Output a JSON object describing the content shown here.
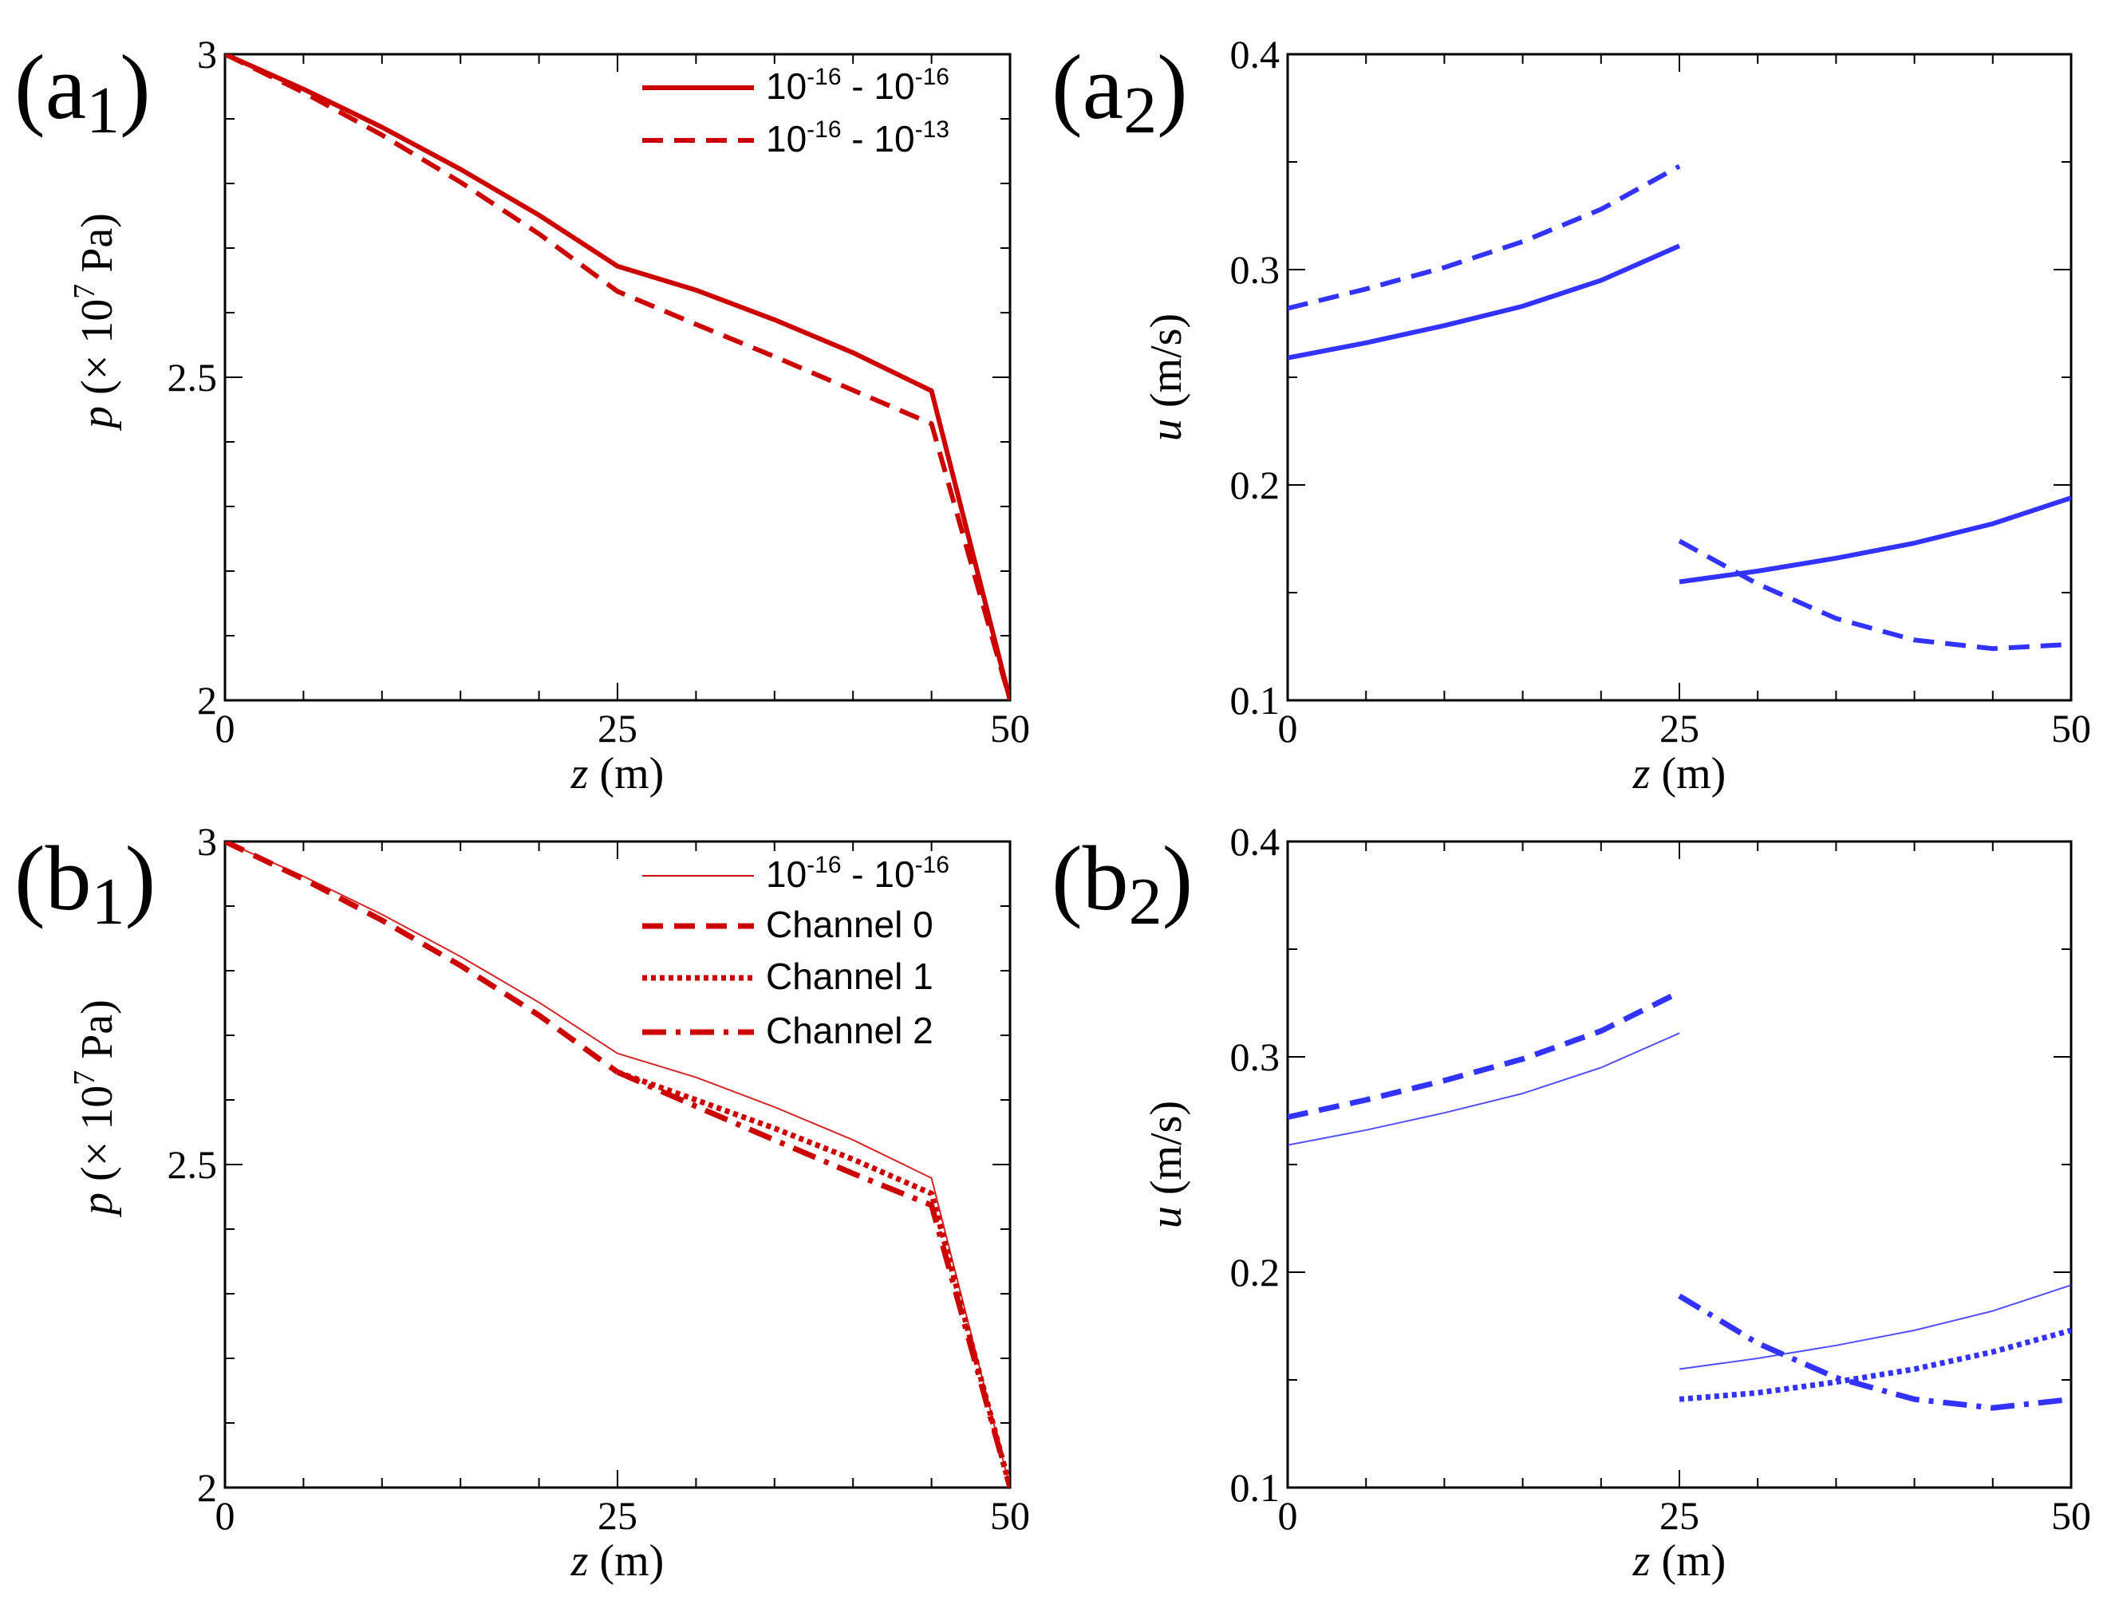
{
  "chart_data": [
    {
      "panel": "a1",
      "type": "line",
      "label_main": "(a",
      "label_sub": "1",
      "label_close": ")",
      "xlabel_var": "z",
      "xlabel_unit": " (m)",
      "ylabel_var": "p",
      "ylabel_unit_pre": " (× 10",
      "ylabel_exp": "7",
      "ylabel_unit_post": " Pa)",
      "xlim": [
        0,
        50
      ],
      "ylim": [
        2,
        3
      ],
      "xticks": [
        0,
        25,
        50
      ],
      "yticks": [
        2,
        2.5,
        3
      ],
      "xtick_labels": [
        "0",
        "25",
        "50"
      ],
      "ytick_labels": [
        "2",
        "2.5",
        "3"
      ],
      "color": "#cc0000",
      "legend": [
        {
          "a": "10",
          "ae": "-16",
          "mid": " - ",
          "b": "10",
          "be": "-16",
          "style": "solid",
          "width": 6
        },
        {
          "a": "10",
          "ae": "-16",
          "mid": " - ",
          "b": "10",
          "be": "-13",
          "style": "dashed",
          "width": 6
        }
      ],
      "series": [
        {
          "name": "10^-16 - 10^-16",
          "style": "solid",
          "width": 6,
          "x": [
            0,
            5,
            10,
            15,
            20,
            25,
            30,
            35,
            40,
            45,
            50
          ],
          "y": [
            3.0,
            2.946,
            2.887,
            2.822,
            2.751,
            2.672,
            2.635,
            2.589,
            2.538,
            2.479,
            2.0
          ]
        },
        {
          "name": "10^-16 - 10^-13",
          "style": "dashed",
          "width": 6,
          "x": [
            0,
            5,
            10,
            15,
            20,
            25,
            30,
            35,
            40,
            45,
            50
          ],
          "y": [
            3.0,
            2.941,
            2.875,
            2.802,
            2.722,
            2.633,
            2.582,
            2.532,
            2.48,
            2.428,
            2.0
          ]
        }
      ]
    },
    {
      "panel": "a2",
      "type": "line",
      "label_main": "(a",
      "label_sub": "2",
      "label_close": ")",
      "xlabel_var": "z",
      "xlabel_unit": " (m)",
      "ylabel_var": "u",
      "ylabel_unit": " (m/s)",
      "xlim": [
        0,
        50
      ],
      "ylim": [
        0.1,
        0.4
      ],
      "xticks": [
        0,
        25,
        50
      ],
      "yticks": [
        0.1,
        0.2,
        0.3,
        0.4
      ],
      "xtick_labels": [
        "0",
        "25",
        "50"
      ],
      "ytick_labels": [
        "0.1",
        "0.2",
        "0.3",
        "0.4"
      ],
      "color": "#3333ff",
      "series": [
        {
          "name": "10^-16 - 10^-16 (z<25)",
          "style": "solid",
          "width": 6,
          "x": [
            0,
            5,
            10,
            15,
            20,
            25
          ],
          "y": [
            0.259,
            0.266,
            0.274,
            0.283,
            0.295,
            0.311
          ]
        },
        {
          "name": "10^-16 - 10^-13 (z<25)",
          "style": "dashed",
          "width": 6,
          "x": [
            0,
            5,
            10,
            15,
            20,
            25
          ],
          "y": [
            0.282,
            0.291,
            0.301,
            0.313,
            0.328,
            0.348
          ]
        },
        {
          "name": "10^-16 - 10^-16 (z>25)",
          "style": "solid",
          "width": 6,
          "x": [
            25,
            30,
            35,
            40,
            45,
            50
          ],
          "y": [
            0.155,
            0.16,
            0.166,
            0.173,
            0.182,
            0.194
          ]
        },
        {
          "name": "10^-16 - 10^-13 (z>25)",
          "style": "dashed",
          "width": 6,
          "x": [
            25,
            30,
            35,
            40,
            45,
            50
          ],
          "y": [
            0.174,
            0.154,
            0.138,
            0.128,
            0.124,
            0.126
          ]
        }
      ]
    },
    {
      "panel": "b1",
      "type": "line",
      "label_main": "(b",
      "label_sub": "1",
      "label_close": ")",
      "xlabel_var": "z",
      "xlabel_unit": " (m)",
      "ylabel_var": "p",
      "ylabel_unit_pre": " (× 10",
      "ylabel_exp": "7",
      "ylabel_unit_post": " Pa)",
      "xlim": [
        0,
        50
      ],
      "ylim": [
        2,
        3
      ],
      "xticks": [
        0,
        25,
        50
      ],
      "yticks": [
        2,
        2.5,
        3
      ],
      "xtick_labels": [
        "0",
        "25",
        "50"
      ],
      "ytick_labels": [
        "2",
        "2.5",
        "3"
      ],
      "color": "#cc0000",
      "legend": [
        {
          "a": "10",
          "ae": "-16",
          "mid": " - ",
          "b": "10",
          "be": "-16",
          "style": "thin",
          "width": 2
        },
        {
          "text": "Channel 0",
          "style": "dashed",
          "width": 7
        },
        {
          "text": "Channel 1",
          "style": "dotted",
          "width": 7
        },
        {
          "text": "Channel 2",
          "style": "dashdot",
          "width": 7
        }
      ],
      "series": [
        {
          "name": "10^-16 - 10^-16",
          "style": "thin",
          "width": 2,
          "x": [
            0,
            5,
            10,
            15,
            20,
            25,
            30,
            35,
            40,
            45,
            50
          ],
          "y": [
            3.0,
            2.946,
            2.887,
            2.822,
            2.751,
            2.672,
            2.635,
            2.589,
            2.538,
            2.479,
            2.0
          ]
        },
        {
          "name": "Channel 0",
          "style": "dashed",
          "width": 7,
          "x": [
            0,
            5,
            10,
            15,
            20,
            25
          ],
          "y": [
            3.0,
            2.942,
            2.878,
            2.808,
            2.731,
            2.643
          ]
        },
        {
          "name": "Channel 1",
          "style": "dotted",
          "width": 7,
          "x": [
            25,
            30,
            35,
            40,
            45,
            50
          ],
          "y": [
            2.643,
            2.6,
            2.556,
            2.508,
            2.455,
            2.0
          ]
        },
        {
          "name": "Channel 2",
          "style": "dashdot",
          "width": 7,
          "x": [
            25,
            30,
            35,
            40,
            45,
            50
          ],
          "y": [
            2.643,
            2.59,
            2.538,
            2.486,
            2.437,
            2.0
          ]
        }
      ]
    },
    {
      "panel": "b2",
      "type": "line",
      "label_main": "(b",
      "label_sub": "2",
      "label_close": ")",
      "xlabel_var": "z",
      "xlabel_unit": " (m)",
      "ylabel_var": "u",
      "ylabel_unit": " (m/s)",
      "xlim": [
        0,
        50
      ],
      "ylim": [
        0.1,
        0.4
      ],
      "xticks": [
        0,
        25,
        50
      ],
      "yticks": [
        0.1,
        0.2,
        0.3,
        0.4
      ],
      "xtick_labels": [
        "0",
        "25",
        "50"
      ],
      "ytick_labels": [
        "0.1",
        "0.2",
        "0.3",
        "0.4"
      ],
      "color": "#3333ff",
      "series": [
        {
          "name": "10^-16 - 10^-16 (z<25)",
          "style": "thin",
          "width": 2,
          "x": [
            0,
            5,
            10,
            15,
            20,
            25
          ],
          "y": [
            0.259,
            0.266,
            0.274,
            0.283,
            0.295,
            0.311
          ]
        },
        {
          "name": "10^-16 - 10^-16 (z>25)",
          "style": "thin",
          "width": 2,
          "x": [
            25,
            30,
            35,
            40,
            45,
            50
          ],
          "y": [
            0.155,
            0.16,
            0.166,
            0.173,
            0.182,
            0.194
          ]
        },
        {
          "name": "Channel 0",
          "style": "dashed",
          "width": 7,
          "x": [
            0,
            5,
            10,
            15,
            20,
            25
          ],
          "y": [
            0.272,
            0.28,
            0.289,
            0.299,
            0.312,
            0.33
          ]
        },
        {
          "name": "Channel 1",
          "style": "dotted",
          "width": 7,
          "x": [
            25,
            30,
            35,
            40,
            45,
            50
          ],
          "y": [
            0.141,
            0.144,
            0.149,
            0.155,
            0.163,
            0.173
          ]
        },
        {
          "name": "Channel 2",
          "style": "dashdot",
          "width": 7,
          "x": [
            25,
            30,
            35,
            40,
            45,
            50
          ],
          "y": [
            0.189,
            0.167,
            0.151,
            0.141,
            0.137,
            0.141
          ]
        }
      ]
    }
  ]
}
